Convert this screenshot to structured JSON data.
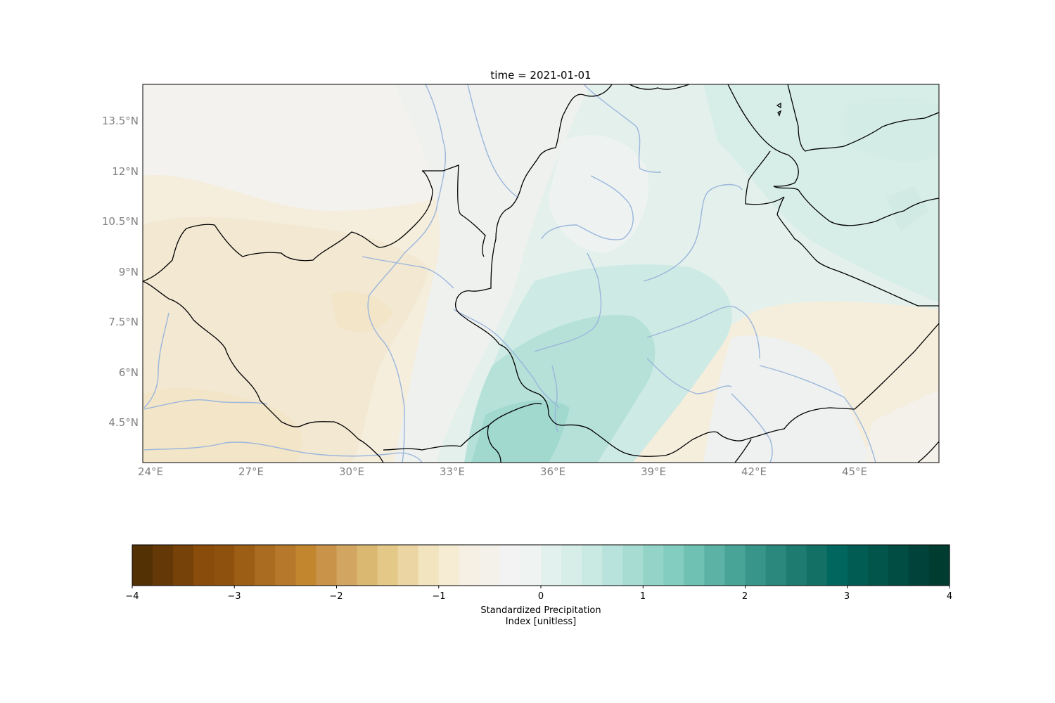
{
  "title": "time = 2021-01-01",
  "map": {
    "lat_ticks": [
      "13.5°N",
      "12°N",
      "10.5°N",
      "9°N",
      "7.5°N",
      "6°N",
      "4.5°N"
    ],
    "lon_ticks": [
      "24°E",
      "27°E",
      "30°E",
      "33°E",
      "36°E",
      "39°E",
      "42°E",
      "45°E"
    ],
    "extent": {
      "lon": [
        23.8,
        47.5
      ],
      "lat": [
        3.3,
        14.6
      ]
    },
    "colormap": "BrBG",
    "features": [
      "coastlines",
      "country borders",
      "rivers"
    ],
    "river_color": "#9bb6dc",
    "border_color": "#000000"
  },
  "colorbar": {
    "label_line1": "Standardized Precipitation",
    "label_line2": "Index [unitless]",
    "ticks": [
      "−4",
      "−3",
      "−2",
      "−1",
      "0",
      "1",
      "2",
      "3",
      "4"
    ],
    "range": [
      -4,
      4
    ],
    "levels": 40,
    "colors": [
      "#543005",
      "#653808",
      "#774209",
      "#8a4c0a",
      "#8f520e",
      "#9c5d15",
      "#a96c20",
      "#b6782a",
      "#c2862f",
      "#c99349",
      "#d2a660",
      "#dab872",
      "#e3c888",
      "#ebd6a3",
      "#f2e4bf",
      "#f6ecd3",
      "#f5efe4",
      "#f4f1ea",
      "#f2f3f2",
      "#eff4f3",
      "#e3f1ee",
      "#d7ede8",
      "#c9e9e3",
      "#b8e3dc",
      "#a7dcd3",
      "#94d3c8",
      "#82cdc0",
      "#6fc1b4",
      "#5bb2a5",
      "#48a497",
      "#379689",
      "#2a887c",
      "#1d7b70",
      "#127065",
      "#00665e",
      "#015d54",
      "#01554b",
      "#014c43",
      "#01433a",
      "#003c30"
    ]
  },
  "chart_data": {
    "type": "heatmap",
    "title": "time = 2021-01-01",
    "xlabel": "",
    "ylabel": "",
    "x_ticks": [
      "24°E",
      "27°E",
      "30°E",
      "33°E",
      "36°E",
      "39°E",
      "42°E",
      "45°E"
    ],
    "y_ticks": [
      "13.5°N",
      "12°N",
      "10.5°N",
      "9°N",
      "7.5°N",
      "6°N",
      "4.5°N"
    ],
    "colorbar_label": "Standardized Precipitation Index [unitless]",
    "value_range": [
      -4,
      4
    ],
    "regions": [
      {
        "lon": 26.0,
        "lat": 8.5,
        "value": -0.35
      },
      {
        "lon": 28.5,
        "lat": 4.5,
        "value": -0.4
      },
      {
        "lon": 30.5,
        "lat": 7.5,
        "value": -0.3
      },
      {
        "lon": 33.5,
        "lat": 12.0,
        "value": -0.2
      },
      {
        "lon": 32.5,
        "lat": 9.5,
        "value": -0.2
      },
      {
        "lon": 36.5,
        "lat": 6.0,
        "value": 1.1
      },
      {
        "lon": 35.0,
        "lat": 4.5,
        "value": 1.2
      },
      {
        "lon": 38.5,
        "lat": 7.0,
        "value": 0.8
      },
      {
        "lon": 39.0,
        "lat": 10.0,
        "value": 0.4
      },
      {
        "lon": 41.0,
        "lat": 13.0,
        "value": 0.5
      },
      {
        "lon": 44.5,
        "lat": 13.0,
        "value": 0.6
      },
      {
        "lon": 44.0,
        "lat": 9.0,
        "value": 0.4
      },
      {
        "lon": 43.0,
        "lat": 5.5,
        "value": 0.05
      },
      {
        "lon": 46.5,
        "lat": 4.0,
        "value": -0.05
      }
    ]
  }
}
